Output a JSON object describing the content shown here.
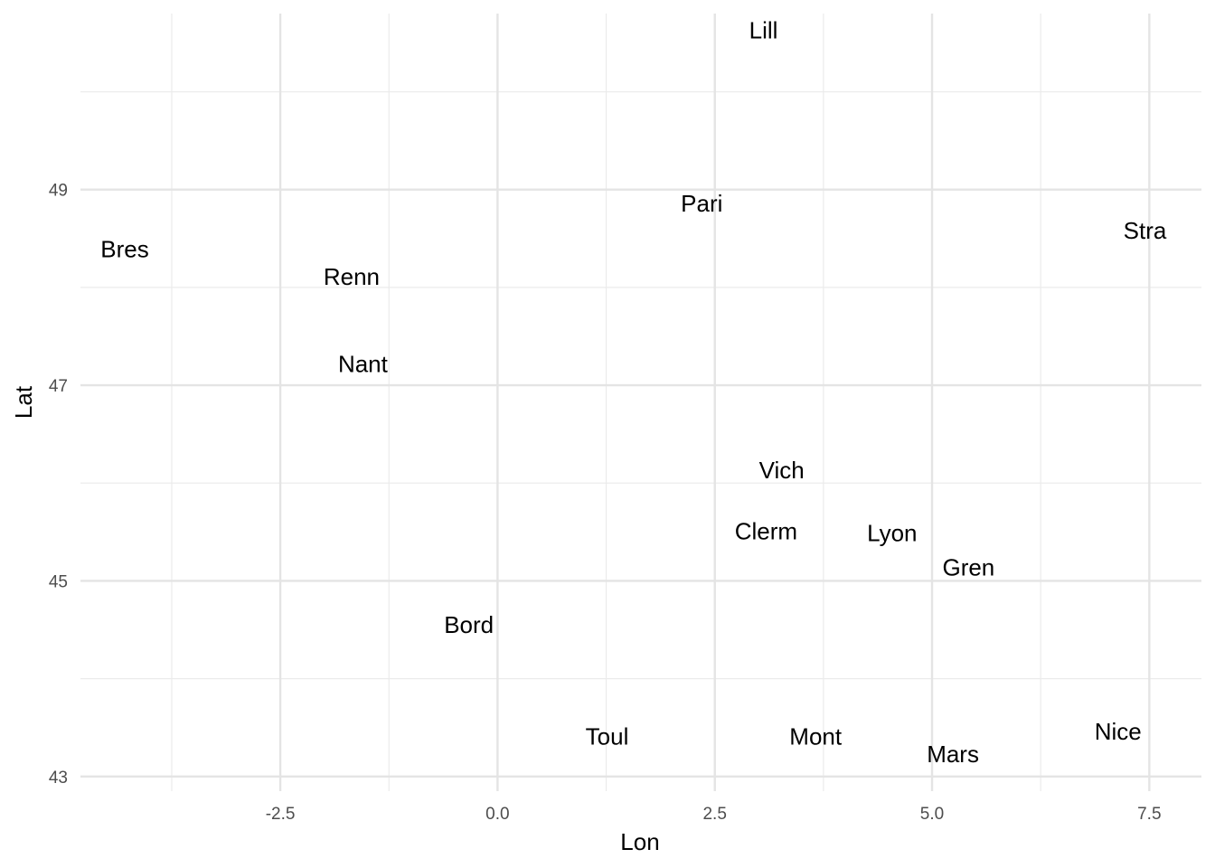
{
  "chart_data": {
    "type": "scatter",
    "xlabel": "Lon",
    "ylabel": "Lat",
    "xlim": [
      -4.8,
      8.1
    ],
    "ylim": [
      42.85,
      50.8
    ],
    "x_major_ticks": [
      -2.5,
      0.0,
      2.5,
      5.0,
      7.5
    ],
    "x_tick_labels": [
      "-2.5",
      "0.0",
      "2.5",
      "5.0",
      "7.5"
    ],
    "x_minor_ticks": [
      -3.75,
      -1.25,
      1.25,
      3.75,
      6.25
    ],
    "y_major_ticks": [
      43,
      45,
      47,
      49
    ],
    "y_tick_labels": [
      "43",
      "45",
      "47",
      "49"
    ],
    "y_minor_ticks": [
      44,
      46,
      48,
      50
    ],
    "grid": true,
    "points": [
      {
        "label": "Lill",
        "x": 3.06,
        "y": 50.63
      },
      {
        "label": "Pari",
        "x": 2.35,
        "y": 48.86
      },
      {
        "label": "Stra",
        "x": 7.45,
        "y": 48.58
      },
      {
        "label": "Bres",
        "x": -4.29,
        "y": 48.39
      },
      {
        "label": "Renn",
        "x": -1.68,
        "y": 48.11
      },
      {
        "label": "Nant",
        "x": -1.55,
        "y": 47.22
      },
      {
        "label": "Vich",
        "x": 3.27,
        "y": 46.13
      },
      {
        "label": "Clerm",
        "x": 3.09,
        "y": 45.51
      },
      {
        "label": "Lyon",
        "x": 4.54,
        "y": 45.49
      },
      {
        "label": "Gren",
        "x": 5.42,
        "y": 45.14
      },
      {
        "label": "Bord",
        "x": -0.33,
        "y": 44.55
      },
      {
        "label": "Toul",
        "x": 1.26,
        "y": 43.41
      },
      {
        "label": "Mont",
        "x": 3.66,
        "y": 43.41
      },
      {
        "label": "Mars",
        "x": 5.24,
        "y": 43.23
      },
      {
        "label": "Nice",
        "x": 7.14,
        "y": 43.46
      }
    ]
  }
}
